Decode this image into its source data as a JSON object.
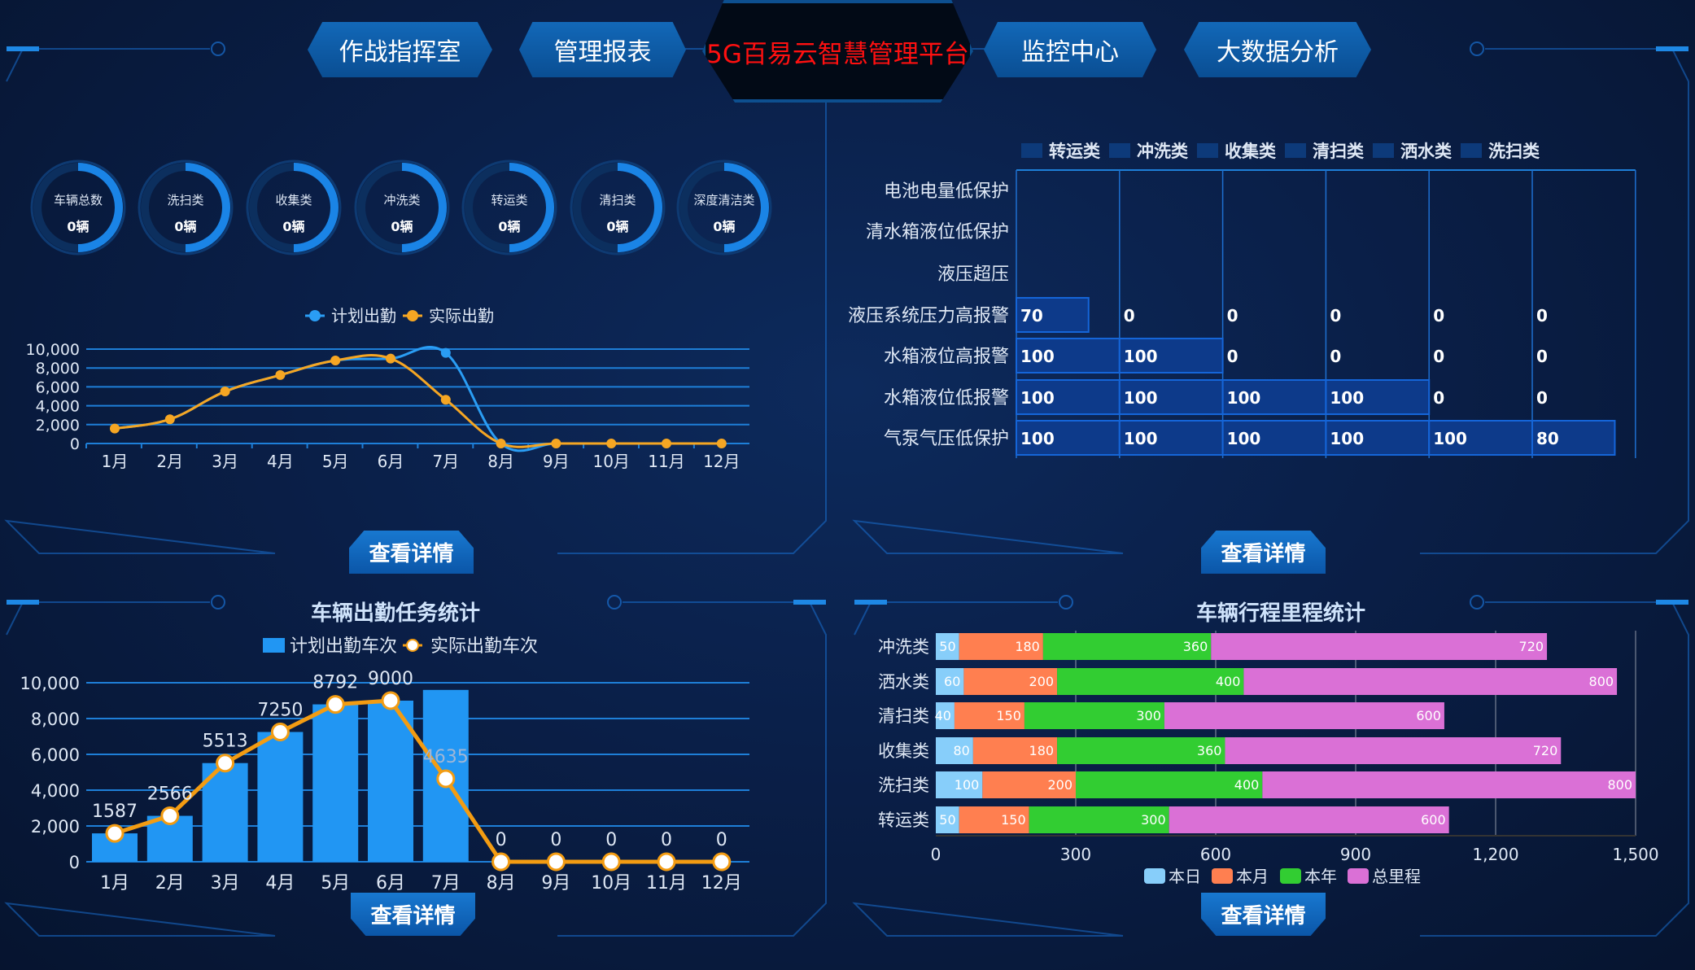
{
  "header": {
    "title": "5G百易云智慧管理平台",
    "title_color": "#ff1010",
    "nav": [
      "作战指挥室",
      "管理报表",
      "监控中心",
      "大数据分析"
    ]
  },
  "gauges": {
    "ring_fill": 0.5,
    "items": [
      {
        "label": "车辆总数",
        "value": "0辆"
      },
      {
        "label": "洗扫类",
        "value": "0辆"
      },
      {
        "label": "收集类",
        "value": "0辆"
      },
      {
        "label": "冲洗类",
        "value": "0辆"
      },
      {
        "label": "转运类",
        "value": "0辆"
      },
      {
        "label": "清扫类",
        "value": "0辆"
      },
      {
        "label": "深度清洁类",
        "value": "0辆"
      }
    ]
  },
  "detail_label": "查看详情",
  "chart_data": [
    {
      "type": "line",
      "categories": [
        "1月",
        "2月",
        "3月",
        "4月",
        "5月",
        "6月",
        "7月",
        "8月",
        "9月",
        "10月",
        "11月",
        "12月"
      ],
      "series": [
        {
          "name": "计划出勤",
          "color": "#2a9df4",
          "values": [
            1587,
            2566,
            5513,
            7250,
            8792,
            9000,
            9600,
            0,
            0,
            0,
            0,
            0
          ]
        },
        {
          "name": "实际出勤",
          "color": "#f5a623",
          "values": [
            1587,
            2566,
            5513,
            7250,
            8792,
            9000,
            4635,
            0,
            0,
            0,
            0,
            0
          ]
        }
      ],
      "yticks": [
        "0",
        "2,000",
        "4,000",
        "6,000",
        "8,000",
        "10,000"
      ],
      "ylim": [
        0,
        10000
      ],
      "grid": true,
      "legend": "top"
    },
    {
      "type": "bar",
      "orientation": "horizontal",
      "categories": [
        "电池电量低保护",
        "清水箱液位低保护",
        "液压超压",
        "液压系统压力高报警",
        "水箱液位高报警",
        "水箱液位低报警",
        "气泵气压低保护"
      ],
      "series": [
        {
          "name": "转运类",
          "values": [
            null,
            null,
            null,
            70,
            100,
            100,
            100
          ]
        },
        {
          "name": "冲洗类",
          "values": [
            null,
            null,
            null,
            0,
            100,
            100,
            100
          ]
        },
        {
          "name": "收集类",
          "values": [
            null,
            null,
            null,
            0,
            0,
            100,
            100
          ]
        },
        {
          "name": "清扫类",
          "values": [
            null,
            null,
            null,
            0,
            0,
            100,
            100
          ]
        },
        {
          "name": "洒水类",
          "values": [
            null,
            null,
            null,
            0,
            0,
            0,
            100
          ]
        },
        {
          "name": "洗扫类",
          "values": [
            null,
            null,
            null,
            0,
            0,
            0,
            80
          ]
        }
      ],
      "bar_color": "#0d3a8a",
      "legend": "top"
    },
    {
      "type": "bar",
      "title": "车辆出勤任务统计",
      "categories": [
        "1月",
        "2月",
        "3月",
        "4月",
        "5月",
        "6月",
        "7月",
        "8月",
        "9月",
        "10月",
        "11月",
        "12月"
      ],
      "series": [
        {
          "name": "计划出勤车次",
          "kind": "bar",
          "color": "#2196f3",
          "values": [
            1587,
            2566,
            5513,
            7250,
            8792,
            9000,
            9600,
            0,
            0,
            0,
            0,
            0
          ]
        },
        {
          "name": "实际出勤车次",
          "kind": "line",
          "color": "#f39c12",
          "values": [
            1587,
            2566,
            5513,
            7250,
            8792,
            9000,
            4635,
            0,
            0,
            0,
            0,
            0
          ]
        }
      ],
      "data_labels": [
        "1587",
        "2566",
        "5513",
        "7250",
        "8792",
        "9000",
        "4635",
        "0",
        "0",
        "0",
        "0",
        "0"
      ],
      "yticks": [
        "0",
        "2,000",
        "4,000",
        "6,000",
        "8,000",
        "10,000"
      ],
      "ylim": [
        0,
        10000
      ],
      "grid": true,
      "legend": "top"
    },
    {
      "type": "bar",
      "stacked": true,
      "orientation": "horizontal",
      "title": "车辆行程里程统计",
      "categories": [
        "冲洗类",
        "洒水类",
        "清扫类",
        "收集类",
        "洗扫类",
        "转运类"
      ],
      "series": [
        {
          "name": "本日",
          "color": "#87cefa",
          "values": [
            50,
            60,
            40,
            80,
            100,
            50
          ]
        },
        {
          "name": "本月",
          "color": "#ff7f50",
          "values": [
            180,
            200,
            150,
            180,
            200,
            150
          ]
        },
        {
          "name": "本年",
          "color": "#32cd32",
          "values": [
            360,
            400,
            300,
            360,
            400,
            300
          ]
        },
        {
          "name": "总里程",
          "color": "#da70d6",
          "values": [
            720,
            800,
            600,
            720,
            800,
            600
          ]
        }
      ],
      "xticks": [
        "0",
        "300",
        "600",
        "900",
        "1,200",
        "1,500"
      ],
      "xlim": [
        0,
        1500
      ],
      "grid": true,
      "legend": "bottom"
    }
  ]
}
